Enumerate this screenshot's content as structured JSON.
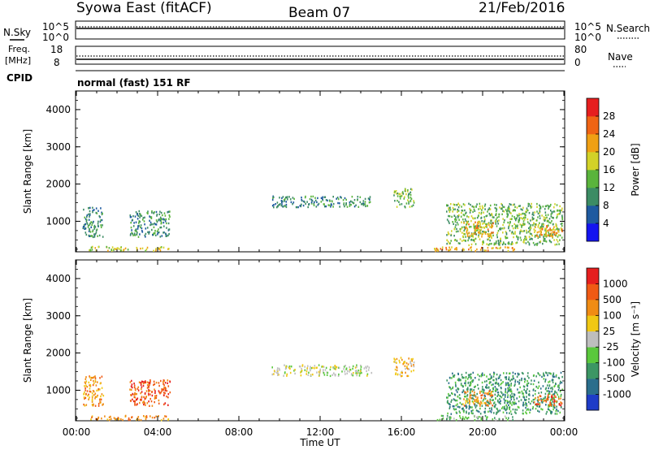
{
  "header": {
    "station": "Syowa East (fitACF)",
    "beam": "Beam 07",
    "date": "21/Feb/2016"
  },
  "side_labels": {
    "nsky": "N.Sky",
    "nsearch": "N.Search",
    "freq": "Freq.",
    "mhz": "[MHz]",
    "nave": "Nave",
    "cpid": "CPID",
    "cpid_value": "normal (fast) 151 RF"
  },
  "noise_axis": {
    "left_ticks": [
      "10^5",
      "10^0"
    ],
    "right_ticks": [
      "10^5",
      "10^0"
    ]
  },
  "freq_axis": {
    "left_ticks": [
      "18",
      "8"
    ],
    "right_ticks": [
      "80",
      "0"
    ]
  },
  "chart_data": [
    {
      "type": "heatmap",
      "name": "power",
      "ylabel": "Slant Range [km]",
      "xlabel": "Time UT",
      "xlim": [
        0,
        24
      ],
      "ylim": [
        180,
        4500
      ],
      "yticks": [
        "1000",
        "2000",
        "3000",
        "4000"
      ],
      "xticks": [
        "00:00",
        "04:00",
        "08:00",
        "12:00",
        "16:00",
        "20:00",
        "00:00"
      ],
      "colorbar": {
        "label": "Power [dB]",
        "ticks": [
          "4",
          "8",
          "12",
          "16",
          "20",
          "24",
          "28"
        ],
        "colors": [
          "#1414f0",
          "#1e5aa0",
          "#3c8c64",
          "#5ab43c",
          "#d2d228",
          "#f0a014",
          "#f06414",
          "#e61e1e"
        ]
      },
      "patches": [
        {
          "t": [
            0.6,
            4.6
          ],
          "r": [
            220,
            340
          ],
          "level": 4
        },
        {
          "t": [
            0.3,
            1.3
          ],
          "r": [
            600,
            1400
          ],
          "level": 2
        },
        {
          "t": [
            2.6,
            4.6
          ],
          "r": [
            600,
            1300
          ],
          "level": 2
        },
        {
          "t": [
            9.6,
            14.5
          ],
          "r": [
            1400,
            1700
          ],
          "level": 2
        },
        {
          "t": [
            15.6,
            16.6
          ],
          "r": [
            1400,
            1900
          ],
          "level": 3
        },
        {
          "t": [
            17.6,
            21.6
          ],
          "r": [
            220,
            340
          ],
          "level": 5
        },
        {
          "t": [
            18.2,
            23.9
          ],
          "r": [
            380,
            1500
          ],
          "level": 3
        },
        {
          "t": [
            19.0,
            20.5
          ],
          "r": [
            600,
            1000
          ],
          "level": 5
        },
        {
          "t": [
            22.5,
            23.9
          ],
          "r": [
            600,
            900
          ],
          "level": 5
        }
      ]
    },
    {
      "type": "heatmap",
      "name": "velocity",
      "ylabel": "Slant Range [km]",
      "xlabel": "Time UT",
      "xlim": [
        0,
        24
      ],
      "ylim": [
        180,
        4500
      ],
      "yticks": [
        "1000",
        "2000",
        "3000",
        "4000"
      ],
      "xticks": [
        "00:00",
        "04:00",
        "08:00",
        "12:00",
        "16:00",
        "20:00",
        "00:00"
      ],
      "colorbar": {
        "label": "Velocity [m s⁻¹]",
        "ticks": [
          "1000",
          "500",
          "100",
          "25",
          "-25",
          "-100",
          "-500",
          "-1000"
        ],
        "colors": [
          "#1e3cc8",
          "#2a6e8c",
          "#3c9664",
          "#5ac83c",
          "#bebebe",
          "#f0c814",
          "#f08c14",
          "#f05a14",
          "#e61e1e"
        ]
      },
      "patches": [
        {
          "t": [
            0.6,
            4.6
          ],
          "r": [
            220,
            340
          ],
          "level": 6
        },
        {
          "t": [
            0.3,
            1.3
          ],
          "r": [
            600,
            1400
          ],
          "level": 6
        },
        {
          "t": [
            2.6,
            4.6
          ],
          "r": [
            600,
            1300
          ],
          "level": 7
        },
        {
          "t": [
            9.6,
            14.5
          ],
          "r": [
            1400,
            1700
          ],
          "level": 4
        },
        {
          "t": [
            15.6,
            16.6
          ],
          "r": [
            1400,
            1900
          ],
          "level": 5
        },
        {
          "t": [
            17.6,
            21.6
          ],
          "r": [
            220,
            340
          ],
          "level": 3
        },
        {
          "t": [
            18.2,
            23.9
          ],
          "r": [
            380,
            1500
          ],
          "level": 2
        },
        {
          "t": [
            19.0,
            20.5
          ],
          "r": [
            600,
            1000
          ],
          "level": 6
        },
        {
          "t": [
            22.5,
            23.9
          ],
          "r": [
            600,
            900
          ],
          "level": 7
        }
      ]
    }
  ]
}
